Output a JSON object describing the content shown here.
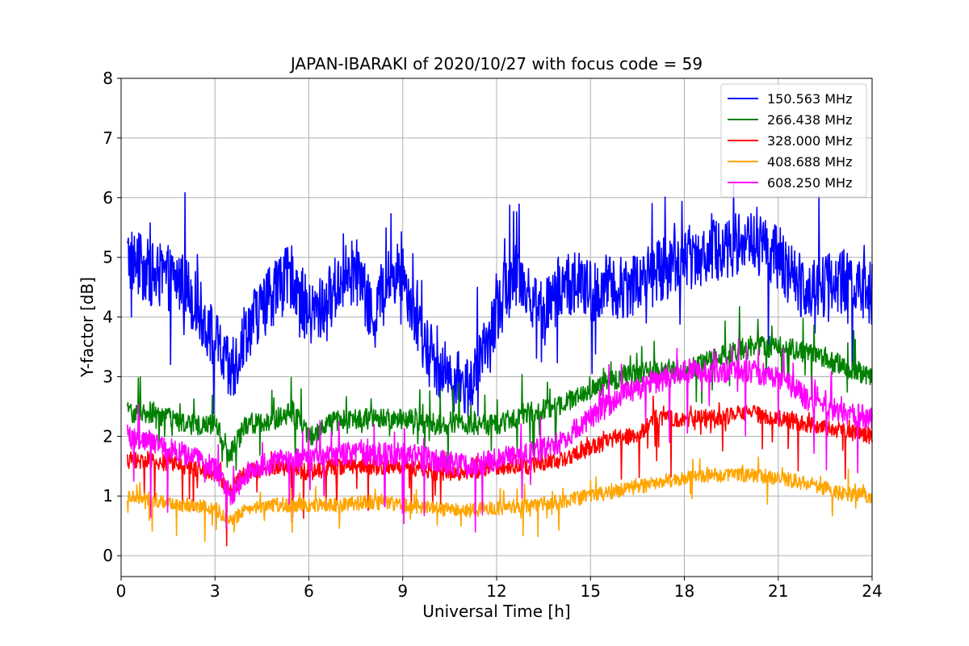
{
  "chart_data": {
    "type": "line",
    "title": "JAPAN-IBARAKI of 2020/10/27 with focus code = 59",
    "xlabel": "Universal Time [h]",
    "ylabel": "Y-factor [dB]",
    "xlim": [
      0,
      24
    ],
    "ylim": [
      -0.35,
      8
    ],
    "xticks": [
      "0",
      "3",
      "6",
      "9",
      "12",
      "15",
      "18",
      "21",
      "24"
    ],
    "yticks": [
      "0",
      "1",
      "2",
      "3",
      "4",
      "5",
      "6",
      "7",
      "8"
    ],
    "grid": true,
    "legend_position": "top-right",
    "x_start": 0.2,
    "x_end": 24,
    "series": [
      {
        "name": "150.563 MHz",
        "color": "#0000ff",
        "base": [
          [
            0.2,
            5.0
          ],
          [
            1,
            4.7
          ],
          [
            2,
            4.6
          ],
          [
            3,
            3.6
          ],
          [
            3.5,
            3.0
          ],
          [
            4,
            3.8
          ],
          [
            5,
            4.5
          ],
          [
            5.5,
            4.7
          ],
          [
            6,
            4.0
          ],
          [
            6.5,
            4.2
          ],
          [
            7,
            4.6
          ],
          [
            7.5,
            4.8
          ],
          [
            8,
            4.0
          ],
          [
            8.5,
            4.6
          ],
          [
            9,
            4.8
          ],
          [
            9.5,
            3.8
          ],
          [
            10,
            3.2
          ],
          [
            10.5,
            3.0
          ],
          [
            11,
            2.8
          ],
          [
            11.5,
            3.2
          ],
          [
            12,
            4.0
          ],
          [
            12.5,
            4.8
          ],
          [
            13,
            4.5
          ],
          [
            13.5,
            4.0
          ],
          [
            14,
            4.5
          ],
          [
            14.5,
            4.6
          ],
          [
            15,
            4.4
          ],
          [
            15.5,
            4.5
          ],
          [
            16,
            4.5
          ],
          [
            17,
            4.7
          ],
          [
            18,
            5.0
          ],
          [
            19,
            5.1
          ],
          [
            20,
            5.3
          ],
          [
            21,
            5.0
          ],
          [
            21.5,
            4.6
          ],
          [
            22,
            4.5
          ],
          [
            23,
            4.6
          ],
          [
            24,
            4.4
          ]
        ],
        "noise": 0.55,
        "spike_up": 1.1,
        "spike_down": 1.4
      },
      {
        "name": "266.438 MHz",
        "color": "#008000",
        "base": [
          [
            0.2,
            2.4
          ],
          [
            1,
            2.4
          ],
          [
            2,
            2.2
          ],
          [
            3,
            2.2
          ],
          [
            3.5,
            1.7
          ],
          [
            4,
            2.2
          ],
          [
            5,
            2.3
          ],
          [
            5.5,
            2.4
          ],
          [
            6,
            2.0
          ],
          [
            7,
            2.3
          ],
          [
            8,
            2.3
          ],
          [
            9,
            2.3
          ],
          [
            10,
            2.2
          ],
          [
            11,
            2.2
          ],
          [
            12,
            2.2
          ],
          [
            13,
            2.4
          ],
          [
            14,
            2.5
          ],
          [
            15,
            2.8
          ],
          [
            16,
            3.0
          ],
          [
            17,
            3.1
          ],
          [
            18,
            3.1
          ],
          [
            19,
            3.3
          ],
          [
            20,
            3.5
          ],
          [
            21,
            3.5
          ],
          [
            22,
            3.4
          ],
          [
            23,
            3.2
          ],
          [
            24,
            3.0
          ]
        ],
        "noise": 0.18,
        "spike_up": 0.6,
        "spike_down": 0.6
      },
      {
        "name": "328.000 MHz",
        "color": "#ff0000",
        "base": [
          [
            0.2,
            1.6
          ],
          [
            1,
            1.6
          ],
          [
            2,
            1.5
          ],
          [
            3,
            1.4
          ],
          [
            3.5,
            1.1
          ],
          [
            4,
            1.4
          ],
          [
            5,
            1.5
          ],
          [
            6,
            1.4
          ],
          [
            7,
            1.5
          ],
          [
            8,
            1.5
          ],
          [
            9,
            1.5
          ],
          [
            10,
            1.4
          ],
          [
            11,
            1.4
          ],
          [
            12,
            1.5
          ],
          [
            13,
            1.5
          ],
          [
            14,
            1.6
          ],
          [
            15,
            1.8
          ],
          [
            16,
            2.0
          ],
          [
            16.5,
            2.0
          ],
          [
            17,
            2.3
          ],
          [
            18,
            2.3
          ],
          [
            19,
            2.3
          ],
          [
            20,
            2.4
          ],
          [
            21,
            2.3
          ],
          [
            22,
            2.2
          ],
          [
            23,
            2.1
          ],
          [
            24,
            2.0
          ]
        ],
        "noise": 0.14,
        "spike_up": 0.3,
        "spike_down": 0.9
      },
      {
        "name": "408.688 MHz",
        "color": "#ffa500",
        "base": [
          [
            0.2,
            1.0
          ],
          [
            1,
            0.95
          ],
          [
            2,
            0.85
          ],
          [
            3,
            0.8
          ],
          [
            3.5,
            0.55
          ],
          [
            4,
            0.8
          ],
          [
            5,
            0.85
          ],
          [
            6,
            0.85
          ],
          [
            7,
            0.85
          ],
          [
            8,
            0.9
          ],
          [
            9,
            0.85
          ],
          [
            10,
            0.8
          ],
          [
            11,
            0.75
          ],
          [
            12,
            0.8
          ],
          [
            13,
            0.85
          ],
          [
            14,
            0.9
          ],
          [
            15,
            1.0
          ],
          [
            16,
            1.1
          ],
          [
            17,
            1.2
          ],
          [
            18,
            1.3
          ],
          [
            19,
            1.35
          ],
          [
            20,
            1.35
          ],
          [
            21,
            1.3
          ],
          [
            22,
            1.2
          ],
          [
            23,
            1.05
          ],
          [
            24,
            1.0
          ]
        ],
        "noise": 0.12,
        "spike_up": 0.3,
        "spike_down": 0.5
      },
      {
        "name": "608.250 MHz",
        "color": "#ff00ff",
        "base": [
          [
            0.2,
            2.0
          ],
          [
            1,
            1.9
          ],
          [
            2,
            1.7
          ],
          [
            3,
            1.5
          ],
          [
            3.5,
            1.0
          ],
          [
            4,
            1.4
          ],
          [
            5,
            1.6
          ],
          [
            6,
            1.6
          ],
          [
            7,
            1.7
          ],
          [
            8,
            1.7
          ],
          [
            9,
            1.7
          ],
          [
            10,
            1.6
          ],
          [
            11,
            1.5
          ],
          [
            12,
            1.6
          ],
          [
            13,
            1.7
          ],
          [
            14,
            1.9
          ],
          [
            15,
            2.3
          ],
          [
            16,
            2.7
          ],
          [
            17,
            2.9
          ],
          [
            18,
            3.1
          ],
          [
            19,
            3.1
          ],
          [
            20,
            3.1
          ],
          [
            21,
            3.0
          ],
          [
            22,
            2.6
          ],
          [
            23,
            2.4
          ],
          [
            24,
            2.3
          ]
        ],
        "noise": 0.2,
        "spike_up": 0.5,
        "spike_down": 1.2
      }
    ]
  }
}
